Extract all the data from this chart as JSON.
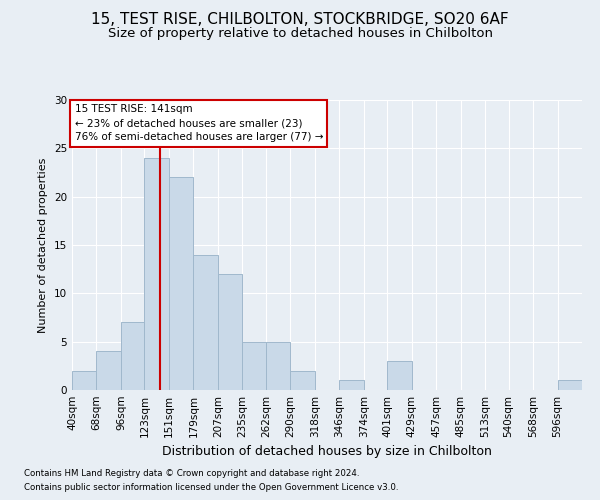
{
  "title": "15, TEST RISE, CHILBOLTON, STOCKBRIDGE, SO20 6AF",
  "subtitle": "Size of property relative to detached houses in Chilbolton",
  "xlabel": "Distribution of detached houses by size in Chilbolton",
  "ylabel": "Number of detached properties",
  "footnote1": "Contains HM Land Registry data © Crown copyright and database right 2024.",
  "footnote2": "Contains public sector information licensed under the Open Government Licence v3.0.",
  "annotation_line1": "15 TEST RISE: 141sqm",
  "annotation_line2": "← 23% of detached houses are smaller (23)",
  "annotation_line3": "76% of semi-detached houses are larger (77) →",
  "bar_color": "#c9d9e8",
  "bar_edgecolor": "#a0b8cc",
  "vline_color": "#cc0000",
  "vline_x": 141,
  "categories": [
    "40sqm",
    "68sqm",
    "96sqm",
    "123sqm",
    "151sqm",
    "179sqm",
    "207sqm",
    "235sqm",
    "262sqm",
    "290sqm",
    "318sqm",
    "346sqm",
    "374sqm",
    "401sqm",
    "429sqm",
    "457sqm",
    "485sqm",
    "513sqm",
    "540sqm",
    "568sqm",
    "596sqm"
  ],
  "bin_edges": [
    40,
    68,
    96,
    123,
    151,
    179,
    207,
    235,
    262,
    290,
    318,
    346,
    374,
    401,
    429,
    457,
    485,
    513,
    540,
    568,
    596,
    624
  ],
  "values": [
    2,
    4,
    7,
    24,
    22,
    14,
    12,
    5,
    5,
    2,
    0,
    1,
    0,
    3,
    0,
    0,
    0,
    0,
    0,
    0,
    1
  ],
  "ylim": [
    0,
    30
  ],
  "yticks": [
    0,
    5,
    10,
    15,
    20,
    25,
    30
  ],
  "background_color": "#e8eef4",
  "plot_background": "#e8eef4",
  "grid_color": "#ffffff",
  "title_fontsize": 11,
  "subtitle_fontsize": 9.5,
  "tick_fontsize": 7.5,
  "ylabel_fontsize": 8,
  "xlabel_fontsize": 9
}
